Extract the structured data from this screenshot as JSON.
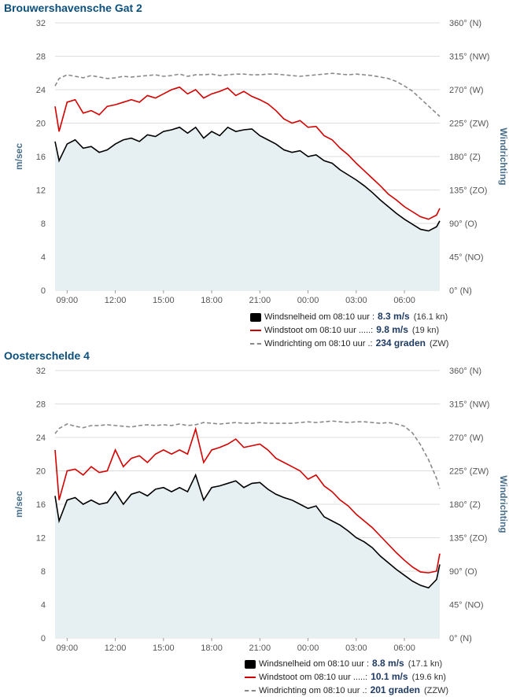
{
  "stations": [
    {
      "title": "Brouwershavensche Gat 2",
      "legend": [
        {
          "label": "Windsnelheid om 08:10 uur :",
          "value": "8.3 m/s",
          "sub": "(16.1 kn)"
        },
        {
          "label": "Windstoot om 08:10 uur .....:",
          "value": "9.8 m/s",
          "sub": "(19 kn)"
        },
        {
          "label": "Windrichting om 08:10 uur .:",
          "value": "234 graden",
          "sub": "(ZW)"
        }
      ]
    },
    {
      "title": "Oosterschelde 4",
      "legend": [
        {
          "label": "Windsnelheid om 08:10 uur :",
          "value": "8.8 m/s",
          "sub": "(17.1 kn)"
        },
        {
          "label": "Windstoot om 08:10 uur .....:",
          "value": "10.1 m/s",
          "sub": "(19.6 kn)"
        },
        {
          "label": "Windrichting om 08:10 uur .:",
          "value": "201 graden",
          "sub": "(ZZW)"
        }
      ]
    }
  ],
  "colors": {
    "speed": "#000000",
    "gust": "#d40000",
    "direction": "#8a8a8a",
    "area_fill": "#e6f0f2",
    "grid": "#dddddd",
    "axis_text": "#555555",
    "axis_title": "#4a6f8c"
  },
  "chart_data": [
    {
      "type": "line",
      "title": "Brouwershavensche Gat 2",
      "xlabel": "",
      "ylabel": "m/sec",
      "y2label": "Windrichting",
      "ylim": [
        0,
        32
      ],
      "y2lim": [
        0,
        360
      ],
      "yticks": [
        "0",
        "4",
        "8",
        "12",
        "16",
        "20",
        "24",
        "28",
        "32"
      ],
      "y2ticks": [
        "0° (N)",
        "45° (NO)",
        "90° (O)",
        "135° (ZO)",
        "180° (Z)",
        "225° (ZW)",
        "270° (W)",
        "315° (NW)",
        "360° (N)"
      ],
      "xlim": [
        8.25,
        32.2
      ],
      "xticks": [
        {
          "x": 9,
          "label": "09:00"
        },
        {
          "x": 12,
          "label": "12:00"
        },
        {
          "x": 15,
          "label": "15:00"
        },
        {
          "x": 18,
          "label": "18:00"
        },
        {
          "x": 21,
          "label": "21:00"
        },
        {
          "x": 24,
          "label": "00:00"
        },
        {
          "x": 27,
          "label": "03:00"
        },
        {
          "x": 30,
          "label": "06:00"
        }
      ],
      "grid": true,
      "legend": "bottom-right",
      "x_hours": [
        8.25,
        8.5,
        9,
        9.5,
        10,
        10.5,
        11,
        11.5,
        12,
        12.5,
        13,
        13.5,
        14,
        14.5,
        15,
        15.5,
        16,
        16.5,
        17,
        17.5,
        18,
        18.5,
        19,
        19.5,
        20,
        20.5,
        21,
        21.5,
        22,
        22.5,
        23,
        23.5,
        24,
        24.5,
        25,
        25.5,
        26,
        26.5,
        27,
        27.5,
        28,
        28.5,
        29,
        29.5,
        30,
        30.5,
        31,
        31.5,
        32,
        32.2
      ],
      "series": [
        {
          "name": "Windsnelheid",
          "values": [
            17.8,
            15.5,
            17.5,
            18.0,
            17.0,
            17.2,
            16.5,
            16.8,
            17.5,
            18.0,
            18.2,
            17.8,
            18.6,
            18.4,
            19.0,
            19.2,
            19.5,
            18.8,
            19.5,
            18.2,
            19.0,
            18.5,
            19.5,
            19.0,
            19.2,
            19.3,
            18.5,
            18.0,
            17.5,
            16.8,
            16.5,
            16.7,
            16.0,
            16.2,
            15.5,
            15.2,
            14.4,
            13.8,
            13.2,
            12.5,
            11.7,
            10.8,
            10.0,
            9.2,
            8.5,
            7.9,
            7.3,
            7.1,
            7.6,
            8.3
          ]
        },
        {
          "name": "Windstoot",
          "values": [
            22.0,
            19.0,
            22.5,
            22.8,
            21.2,
            21.5,
            21.0,
            22.0,
            22.2,
            22.5,
            22.8,
            22.5,
            23.3,
            23.0,
            23.5,
            24.0,
            24.3,
            23.5,
            24.0,
            23.0,
            23.5,
            23.8,
            24.2,
            23.3,
            23.8,
            23.2,
            22.8,
            22.3,
            21.5,
            20.5,
            20.0,
            20.3,
            19.5,
            19.6,
            18.5,
            18.0,
            17.0,
            16.2,
            15.2,
            14.3,
            13.4,
            12.5,
            11.5,
            10.8,
            10.0,
            9.4,
            8.8,
            8.5,
            9.0,
            9.8
          ]
        },
        {
          "name": "Windrichting",
          "values": [
            275,
            285,
            290,
            288,
            286,
            289,
            287,
            285,
            286,
            288,
            287,
            288,
            289,
            290,
            288,
            289,
            291,
            288,
            290,
            290,
            291,
            289,
            290,
            291,
            291,
            290,
            290,
            291,
            291,
            290,
            289,
            288,
            289,
            290,
            291,
            292,
            291,
            290,
            291,
            290,
            289,
            287,
            285,
            281,
            275,
            268,
            258,
            248,
            238,
            234
          ]
        }
      ]
    },
    {
      "type": "line",
      "title": "Oosterschelde 4",
      "xlabel": "",
      "ylabel": "m/sec",
      "y2label": "Windrichting",
      "ylim": [
        0,
        32
      ],
      "y2lim": [
        0,
        360
      ],
      "yticks": [
        "0",
        "4",
        "8",
        "12",
        "16",
        "20",
        "24",
        "28",
        "32"
      ],
      "y2ticks": [
        "0° (N)",
        "45° (NO)",
        "90° (O)",
        "135° (ZO)",
        "180° (Z)",
        "225° (ZW)",
        "270° (W)",
        "315° (NW)",
        "360° (N)"
      ],
      "xlim": [
        8.25,
        32.2
      ],
      "xticks": [
        {
          "x": 9,
          "label": "09:00"
        },
        {
          "x": 12,
          "label": "12:00"
        },
        {
          "x": 15,
          "label": "15:00"
        },
        {
          "x": 18,
          "label": "18:00"
        },
        {
          "x": 21,
          "label": "21:00"
        },
        {
          "x": 24,
          "label": "00:00"
        },
        {
          "x": 27,
          "label": "03:00"
        },
        {
          "x": 30,
          "label": "06:00"
        }
      ],
      "grid": true,
      "legend": "bottom-right",
      "x_hours": [
        8.25,
        8.5,
        9,
        9.5,
        10,
        10.5,
        11,
        11.5,
        12,
        12.5,
        13,
        13.5,
        14,
        14.5,
        15,
        15.5,
        16,
        16.5,
        17,
        17.5,
        18,
        18.5,
        19,
        19.5,
        20,
        20.5,
        21,
        21.5,
        22,
        22.5,
        23,
        23.5,
        24,
        24.5,
        25,
        25.5,
        26,
        26.5,
        27,
        27.5,
        28,
        28.5,
        29,
        29.5,
        30,
        30.5,
        31,
        31.5,
        32,
        32.2
      ],
      "series": [
        {
          "name": "Windsnelheid",
          "values": [
            17.0,
            14.0,
            16.5,
            16.8,
            16.0,
            16.5,
            16.0,
            16.2,
            17.5,
            16.0,
            17.2,
            17.5,
            17.0,
            17.8,
            18.0,
            17.5,
            18.0,
            17.5,
            19.5,
            16.5,
            18.0,
            18.2,
            18.5,
            18.8,
            18.0,
            18.5,
            18.6,
            17.8,
            17.2,
            16.8,
            16.5,
            16.0,
            15.5,
            15.8,
            14.5,
            14.0,
            13.5,
            12.8,
            12.0,
            11.5,
            10.8,
            9.8,
            9.0,
            8.2,
            7.5,
            6.8,
            6.3,
            6.0,
            7.0,
            8.8
          ]
        },
        {
          "name": "Windstoot",
          "values": [
            22.5,
            16.5,
            20.0,
            20.2,
            19.5,
            20.5,
            19.8,
            20.0,
            22.5,
            20.5,
            21.5,
            21.8,
            21.0,
            22.0,
            22.5,
            22.0,
            22.5,
            22.0,
            25.0,
            21.0,
            22.5,
            22.8,
            23.2,
            23.8,
            22.8,
            23.0,
            23.2,
            22.5,
            21.5,
            21.0,
            20.5,
            20.0,
            19.0,
            19.5,
            18.2,
            17.5,
            16.5,
            15.8,
            14.8,
            14.0,
            13.2,
            12.2,
            11.2,
            10.2,
            9.3,
            8.5,
            7.9,
            7.8,
            8.0,
            10.1
          ]
        },
        {
          "name": "Windrichting",
          "values": [
            275,
            282,
            288,
            285,
            283,
            286,
            286,
            287,
            286,
            285,
            284,
            286,
            287,
            286,
            287,
            286,
            288,
            286,
            287,
            290,
            289,
            288,
            289,
            290,
            289,
            289,
            290,
            289,
            289,
            289,
            289,
            290,
            291,
            290,
            291,
            292,
            291,
            290,
            291,
            291,
            290,
            289,
            290,
            288,
            285,
            276,
            260,
            240,
            215,
            201
          ]
        }
      ]
    }
  ]
}
